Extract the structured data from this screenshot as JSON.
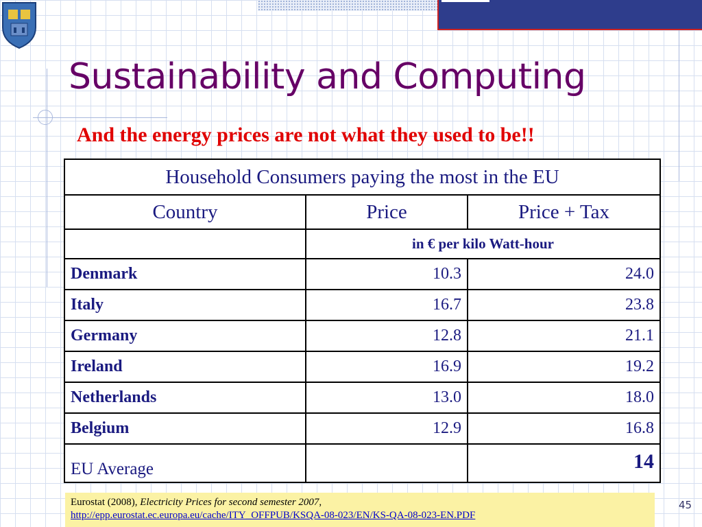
{
  "slide": {
    "title": "Sustainability and Computing",
    "subtitle": "And the energy prices are not what they used to be!!",
    "page_number": "45"
  },
  "table": {
    "caption": "Household Consumers paying the most in the EU",
    "headers": [
      "Country",
      "Price",
      "Price + Tax"
    ],
    "units": "in € per kilo Watt-hour",
    "rows": [
      {
        "country": "Denmark",
        "price": "10.3",
        "price_tax": "24.0"
      },
      {
        "country": "Italy",
        "price": "16.7",
        "price_tax": "23.8"
      },
      {
        "country": "Germany",
        "price": "12.8",
        "price_tax": "21.1"
      },
      {
        "country": "Ireland",
        "price": "16.9",
        "price_tax": "19.2"
      },
      {
        "country": "Netherlands",
        "price": "13.0",
        "price_tax": "18.0"
      },
      {
        "country": "Belgium",
        "price": "12.9",
        "price_tax": "16.8"
      }
    ],
    "average": {
      "country": "EU Average",
      "price": "",
      "price_tax": "14"
    }
  },
  "source": {
    "prefix": "Eurostat (2008), ",
    "title": "Electricity Prices for second semester 2007",
    "suffix": ",",
    "url": "http://epp.eurostat.ec.europa.eu/cache/ITY_OFFPUB/KSQA-08-023/EN/KS-QA-08-023-EN.PDF"
  },
  "colors": {
    "title": "#660066",
    "subtitle": "#e00000",
    "table_text": "#1a1a80",
    "top_bar": "#2e3d8c",
    "source_bg": "#fbf2a4"
  },
  "icons": {
    "crest": "coat-of-arms-icon"
  }
}
